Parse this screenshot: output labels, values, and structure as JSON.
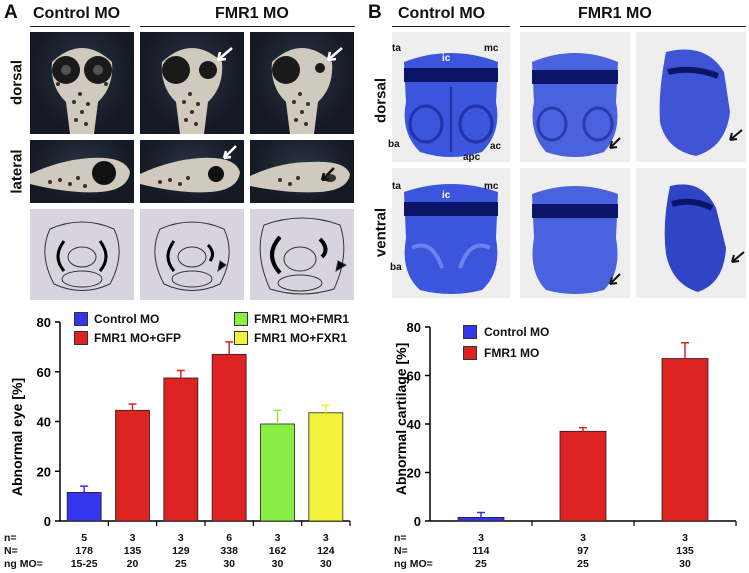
{
  "panelA": {
    "letter": "A",
    "header_control": "Control MO",
    "header_fmr1": "FMR1 MO",
    "row_dorsal": "dorsal",
    "row_lateral": "lateral"
  },
  "panelB": {
    "letter": "B",
    "header_control": "Control MO",
    "header_fmr1": "FMR1 MO",
    "row_dorsal": "dorsal",
    "row_ventral": "ventral",
    "labels": {
      "ta": "ta",
      "ic": "ic",
      "mc": "mc",
      "ba": "ba",
      "apc": "apc",
      "ac": "ac"
    }
  },
  "chartA_legend": {
    "control": "Control MO",
    "gfp": "FMR1 MO+GFP",
    "fmr1": "FMR1 MO+FMR1",
    "fxr1": "FMR1 MO+FXR1"
  },
  "chartB_legend": {
    "control": "Control MO",
    "fmr1": "FMR1 MO"
  },
  "colors": {
    "blue": "#3535ee",
    "red": "#dd2222",
    "green": "#88ee44",
    "yellow": "#f2f23a",
    "stain": "#2f48d8"
  },
  "chart_data": [
    {
      "type": "bar",
      "title": "",
      "ylabel": "Abnormal eye [%]",
      "xlabel": "",
      "ylim": [
        0,
        80
      ],
      "yticks": [
        "0",
        "20",
        "40",
        "60",
        "80"
      ],
      "categories": [
        "Control MO",
        "FMR1 MO+GFP",
        "FMR1 MO+GFP",
        "FMR1 MO+GFP",
        "FMR1 MO+FMR1",
        "FMR1 MO+FXR1"
      ],
      "values": [
        11.5,
        44.5,
        57.5,
        67,
        39,
        43.5
      ],
      "errors": [
        2.5,
        2.5,
        3,
        5,
        5.5,
        3
      ],
      "bar_colors": [
        "#3535ee",
        "#dd2222",
        "#dd2222",
        "#dd2222",
        "#88ee44",
        "#f2f23a"
      ],
      "table": {
        "row_labels": [
          "n=",
          "N=",
          "ng MO="
        ],
        "n": [
          "5",
          "3",
          "3",
          "6",
          "3",
          "3"
        ],
        "N": [
          "178",
          "135",
          "129",
          "338",
          "162",
          "124"
        ],
        "ng": [
          "15-25",
          "20",
          "25",
          "30",
          "30",
          "30"
        ]
      }
    },
    {
      "type": "bar",
      "title": "",
      "ylabel": "Abnormal cartilage [%]",
      "xlabel": "",
      "ylim": [
        0,
        80
      ],
      "yticks": [
        "0",
        "20",
        "40",
        "60",
        "80"
      ],
      "categories": [
        "Control MO",
        "FMR1 MO",
        "FMR1 MO"
      ],
      "values": [
        1.5,
        37,
        67
      ],
      "errors": [
        2,
        1.5,
        6.5
      ],
      "bar_colors": [
        "#3535ee",
        "#dd2222",
        "#dd2222"
      ],
      "table": {
        "row_labels": [
          "n=",
          "N=",
          "ng MO="
        ],
        "n": [
          "3",
          "3",
          "3"
        ],
        "N": [
          "114",
          "97",
          "135"
        ],
        "ng": [
          "25",
          "25",
          "30"
        ]
      }
    }
  ]
}
